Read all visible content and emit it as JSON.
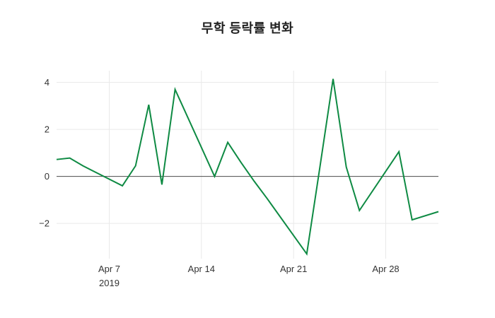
{
  "chart_data": {
    "type": "line",
    "title": "무학 등락률 변화",
    "xlabel": "",
    "ylabel": "",
    "x_range": [
      "2019-04-03",
      "2019-05-02"
    ],
    "ylim": [
      -3.5,
      4.5
    ],
    "grid": true,
    "legend_position": "none",
    "background": "#ffffff",
    "grid_color": "#e9e9e9",
    "zero_line_color": "#4a4a4a",
    "tick_color": "#333333",
    "x_ticks": [
      {
        "value": "2019-04-07",
        "label": "Apr 7",
        "sublabel": "2019"
      },
      {
        "value": "2019-04-14",
        "label": "Apr 14",
        "sublabel": ""
      },
      {
        "value": "2019-04-21",
        "label": "Apr 21",
        "sublabel": ""
      },
      {
        "value": "2019-04-28",
        "label": "Apr 28",
        "sublabel": ""
      }
    ],
    "y_ticks": [
      {
        "value": 4,
        "label": "4"
      },
      {
        "value": 2,
        "label": "2"
      },
      {
        "value": 0,
        "label": "0"
      },
      {
        "value": -2,
        "label": "−2"
      }
    ],
    "series": [
      {
        "color": "#0e8a43",
        "line_width": 2,
        "x": [
          "2019-04-03",
          "2019-04-04",
          "2019-04-05",
          "2019-04-08",
          "2019-04-09",
          "2019-04-10",
          "2019-04-11",
          "2019-04-12",
          "2019-04-15",
          "2019-04-16",
          "2019-04-17",
          "2019-04-18",
          "2019-04-19",
          "2019-04-22",
          "2019-04-23",
          "2019-04-24",
          "2019-04-25",
          "2019-04-26",
          "2019-04-29",
          "2019-04-30",
          "2019-05-02"
        ],
        "values": [
          0.72,
          0.78,
          0.45,
          -0.4,
          0.45,
          3.05,
          -0.35,
          3.7,
          0.0,
          1.45,
          0.6,
          -0.2,
          -0.95,
          -3.3,
          0.4,
          4.15,
          0.4,
          -1.45,
          1.05,
          -1.85,
          -1.5
        ]
      }
    ]
  }
}
